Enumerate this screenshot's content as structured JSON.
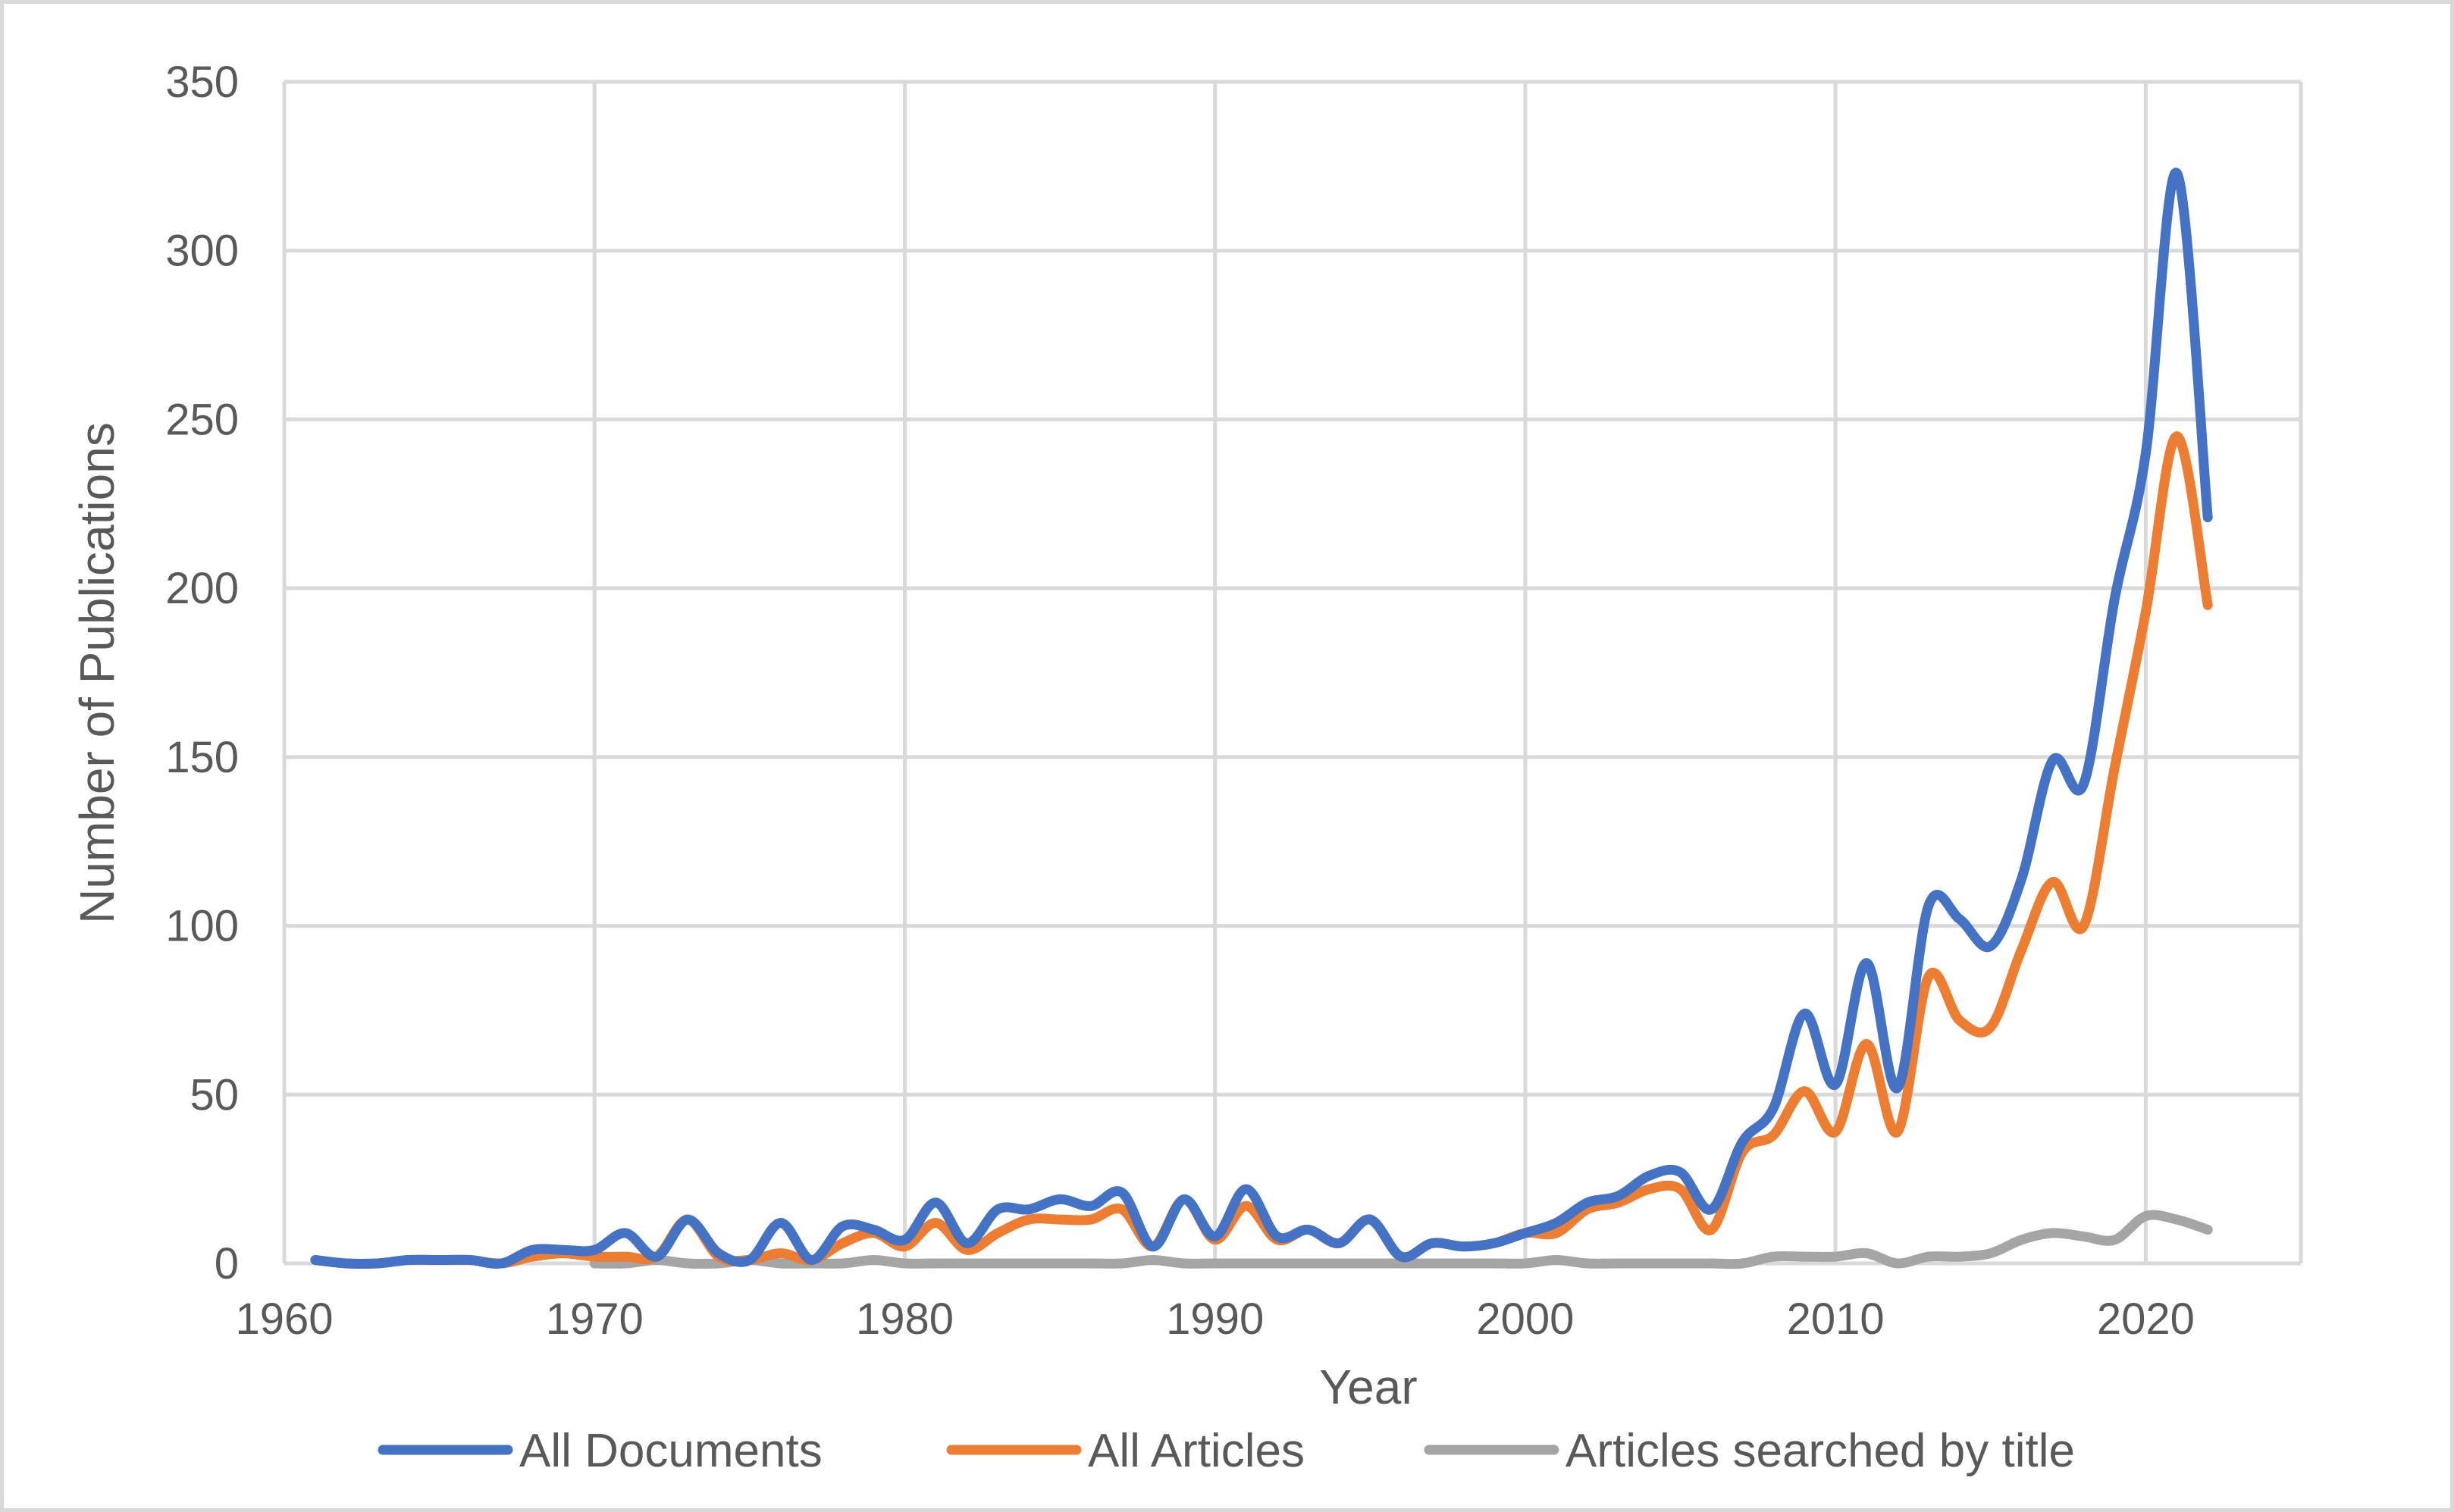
{
  "chart_data": {
    "type": "line",
    "title": "",
    "xlabel": "Year",
    "ylabel": "Number of Publications",
    "xlim": [
      1960,
      2025
    ],
    "ylim": [
      0,
      350
    ],
    "x_ticks": [
      1960,
      1970,
      1980,
      1990,
      2000,
      2010,
      2020
    ],
    "y_ticks": [
      0,
      50,
      100,
      150,
      200,
      250,
      300,
      350
    ],
    "grid": true,
    "legend_position": "bottom",
    "x": [
      1961,
      1962,
      1963,
      1964,
      1965,
      1966,
      1967,
      1968,
      1969,
      1970,
      1971,
      1972,
      1973,
      1974,
      1975,
      1976,
      1977,
      1978,
      1979,
      1980,
      1981,
      1982,
      1983,
      1984,
      1985,
      1986,
      1987,
      1988,
      1989,
      1990,
      1991,
      1992,
      1993,
      1994,
      1995,
      1996,
      1997,
      1998,
      1999,
      2000,
      2001,
      2002,
      2003,
      2004,
      2005,
      2006,
      2007,
      2008,
      2009,
      2010,
      2011,
      2012,
      2013,
      2014,
      2015,
      2016,
      2017,
      2018,
      2019,
      2020,
      2021,
      2022
    ],
    "series": [
      {
        "name": "All Documents",
        "color": "#4472c4",
        "values": [
          1,
          0,
          0,
          1,
          1,
          1,
          0,
          4,
          4,
          4,
          9,
          2,
          13,
          3,
          1,
          12,
          1,
          11,
          10,
          7,
          18,
          6,
          16,
          16,
          19,
          17,
          21,
          5,
          19,
          8,
          22,
          8,
          10,
          6,
          13,
          2,
          6,
          5,
          6,
          9,
          12,
          18,
          20,
          26,
          27,
          16,
          36,
          46,
          74,
          53,
          89,
          52,
          106,
          102,
          94,
          114,
          149,
          142,
          197,
          240,
          323,
          221
        ]
      },
      {
        "name": "All Articles",
        "color": "#ed7d31",
        "values": [
          1,
          0,
          0,
          1,
          1,
          1,
          0,
          2,
          3,
          2,
          2,
          2,
          13,
          2,
          1,
          3,
          1,
          6,
          9,
          5,
          12,
          4,
          9,
          13,
          13,
          13,
          16,
          5,
          19,
          7,
          17,
          7,
          10,
          6,
          13,
          2,
          6,
          5,
          6,
          9,
          9,
          16,
          18,
          22,
          22,
          10,
          33,
          38,
          51,
          39,
          65,
          39,
          85,
          72,
          70,
          93,
          113,
          100,
          147,
          193,
          245,
          195
        ]
      },
      {
        "name": "Articles searched by title",
        "color": "#a5a5a5",
        "values": [
          null,
          null,
          null,
          null,
          null,
          null,
          null,
          null,
          null,
          0,
          0,
          1,
          0,
          0,
          1,
          0,
          0,
          0,
          1,
          0,
          0,
          0,
          0,
          0,
          0,
          0,
          0,
          1,
          0,
          0,
          0,
          0,
          0,
          0,
          0,
          0,
          0,
          0,
          0,
          0,
          1,
          0,
          0,
          0,
          0,
          0,
          0,
          2,
          2,
          2,
          3,
          0,
          2,
          2,
          3,
          7,
          9,
          8,
          7,
          14,
          13,
          10
        ]
      }
    ]
  }
}
